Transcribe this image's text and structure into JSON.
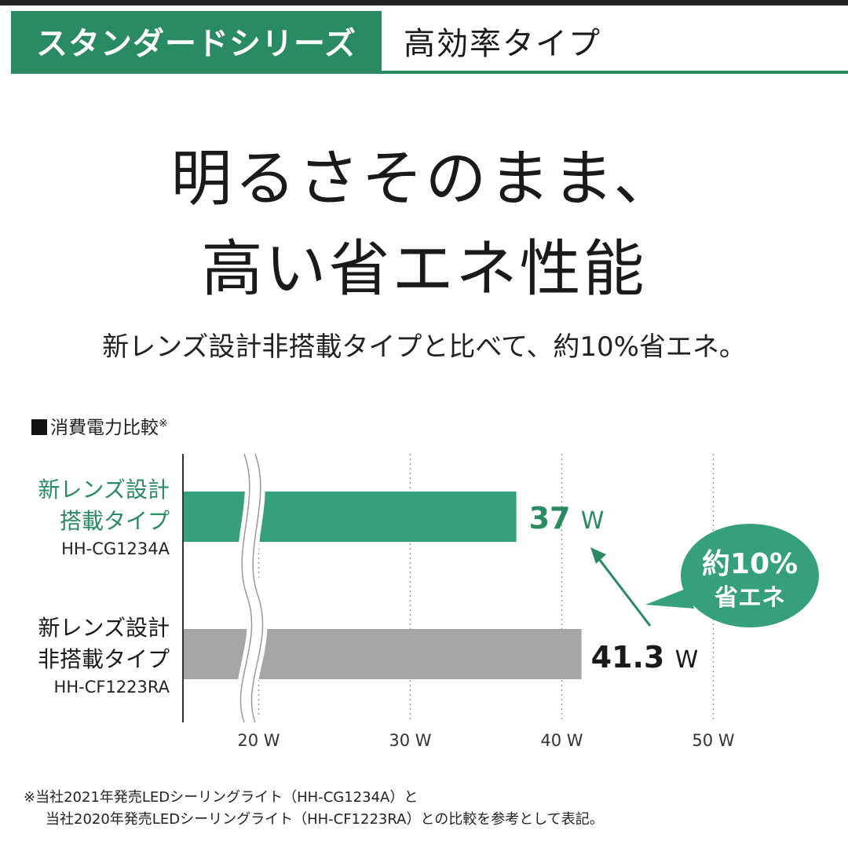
{
  "header": {
    "tab_active": "スタンダードシリーズ",
    "tab_inactive": "高効率タイプ"
  },
  "headline": {
    "line1": "明るさそのまま、",
    "line2": "高い省エネ性能"
  },
  "subhead": "新レンズ設計非搭載タイプと比べて、約10%省エネ。",
  "chart_title": "消費電力比較",
  "chart_title_mark": "※",
  "categories": [
    {
      "name_line1": "新レンズ設計",
      "name_line2": "搭載タイプ",
      "model": "HH-CG1234A"
    },
    {
      "name_line1": "新レンズ設計",
      "name_line2": "非搭載タイプ",
      "model": "HH-CF1223RA"
    }
  ],
  "colors": {
    "accent": "#2a8a62",
    "bar_new": "#35a07a",
    "bar_old": "#a7a5a5",
    "bubble": "#35a07a"
  },
  "chart_data": {
    "type": "bar",
    "orientation": "horizontal",
    "title": "消費電力比較",
    "categories": [
      "新レンズ設計搭載タイプ HH-CG1234A",
      "新レンズ設計非搭載タイプ HH-CF1223RA"
    ],
    "values": [
      37,
      41.3
    ],
    "value_labels": [
      "37",
      "41.3"
    ],
    "unit": "W",
    "x_ticks": [
      20,
      30,
      40,
      50
    ],
    "x_tick_labels": [
      "20 W",
      "30 W",
      "40 W",
      "50 W"
    ],
    "xlim": [
      15,
      50
    ],
    "axis_break": true,
    "grid": "vertical dotted",
    "annotation": {
      "line1": "約10%",
      "line2": "省エネ"
    }
  },
  "footnote": {
    "line1": "※当社2021年発売LEDシーリングライト（HH-CG1234A）と",
    "line2": "当社2020年発売LEDシーリングライト（HH-CF1223RA）との比較を参考として表記。"
  }
}
